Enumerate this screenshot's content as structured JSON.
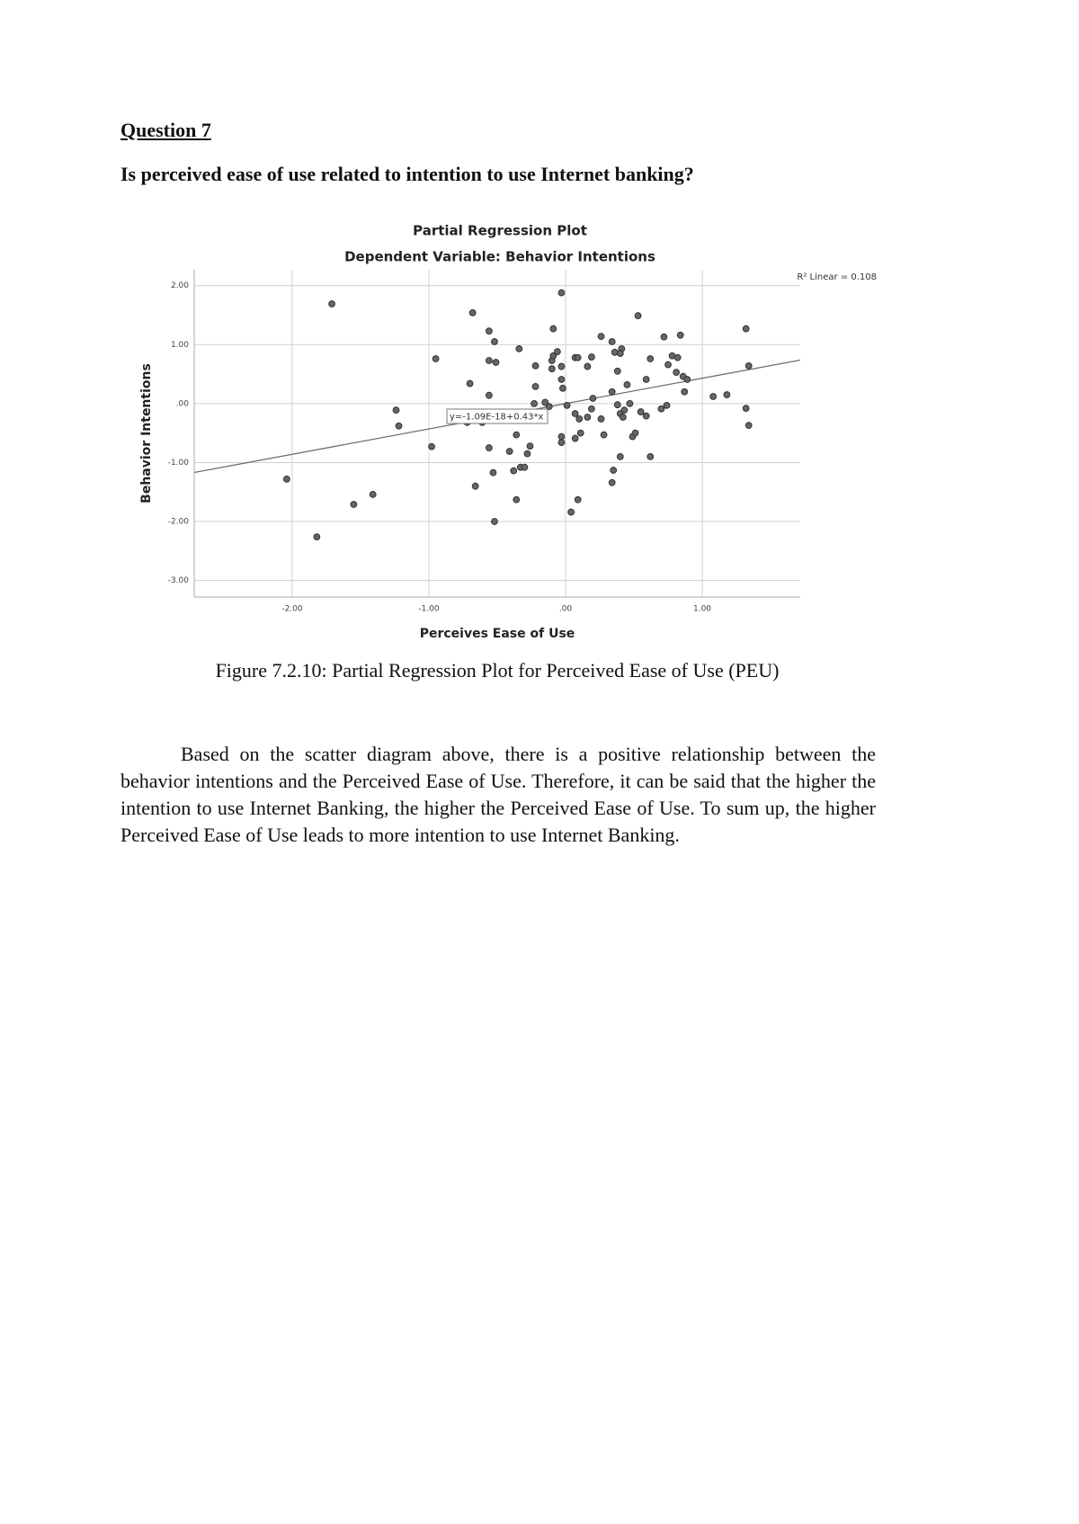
{
  "heading": "Question 7",
  "question": "Is perceived ease of use related to intention to use Internet banking?",
  "chart_data": {
    "type": "scatter",
    "title": "Partial Regression Plot",
    "subtitle": "Dependent Variable: Behavior Intentions",
    "x_label": "Perceives Ease of Use",
    "y_label": "Behavior Intentions",
    "r2_label": "R² Linear = 0.108",
    "color": "#666666",
    "grid": true,
    "xlim": [
      -2.717,
      1.717
    ],
    "ylim": [
      -3.28,
      2.27
    ],
    "xticks": [
      {
        "value": -2,
        "label": "-2.00"
      },
      {
        "value": -1,
        "label": "-1.00"
      },
      {
        "value": 0,
        "label": ".00"
      },
      {
        "value": 1,
        "label": "1.00"
      }
    ],
    "yticks": [
      {
        "value": 2,
        "label": "2.00"
      },
      {
        "value": 1,
        "label": "1.00"
      },
      {
        "value": 0,
        "label": ".00"
      },
      {
        "value": -1,
        "label": "-1.00"
      },
      {
        "value": -2,
        "label": "-2.00"
      },
      {
        "value": -3,
        "label": "-3.00"
      }
    ],
    "trendline": {
      "slope": 0.43,
      "intercept": -1.09e-18,
      "label": "y=-1.09E-18+0.43*x",
      "color": "#6e6e6e"
    },
    "x": [
      -1.71,
      -2.04,
      -1.82,
      -1.55,
      -1.41,
      -1.24,
      -1.22,
      -0.95,
      -0.98,
      -0.68,
      -0.7,
      -0.66,
      -0.72,
      -0.61,
      -0.56,
      -0.52,
      -0.56,
      -0.51,
      -0.56,
      -0.56,
      -0.53,
      -0.52,
      -0.34,
      -0.36,
      -0.41,
      -0.36,
      -0.38,
      -0.33,
      -0.3,
      -0.28,
      -0.26,
      -0.22,
      -0.22,
      -0.23,
      -0.15,
      -0.12,
      -0.09,
      -0.1,
      -0.09,
      -0.06,
      -0.1,
      -0.03,
      -0.03,
      -0.02,
      -0.03,
      -0.03,
      -0.03,
      0.01,
      0.04,
      0.07,
      0.09,
      0.09,
      0.07,
      0.1,
      0.11,
      0.07,
      0.19,
      0.16,
      0.19,
      0.2,
      0.16,
      0.26,
      0.28,
      0.26,
      0.34,
      0.36,
      0.41,
      0.4,
      0.38,
      0.34,
      0.45,
      0.38,
      0.4,
      0.43,
      0.42,
      0.47,
      0.4,
      0.35,
      0.34,
      0.49,
      0.51,
      0.53,
      0.55,
      0.59,
      0.59,
      0.62,
      0.62,
      0.72,
      0.7,
      0.74,
      0.75,
      0.78,
      0.82,
      0.81,
      0.84,
      0.86,
      0.89,
      0.87,
      1.08,
      1.18,
      1.32,
      1.34,
      1.32,
      1.34
    ],
    "values": [
      1.69,
      -1.28,
      -2.26,
      -1.71,
      -1.54,
      -0.11,
      -0.38,
      0.76,
      -0.73,
      1.54,
      0.34,
      -1.4,
      -0.32,
      -0.32,
      1.23,
      1.05,
      0.73,
      0.7,
      0.14,
      -0.75,
      -1.17,
      -2.0,
      0.93,
      -0.53,
      -0.81,
      -1.63,
      -1.14,
      -1.08,
      -1.08,
      -0.85,
      -0.72,
      0.64,
      0.29,
      0.0,
      0.02,
      -0.05,
      1.27,
      0.73,
      0.81,
      0.88,
      0.59,
      0.63,
      0.41,
      0.26,
      1.88,
      -0.56,
      -0.66,
      -0.03,
      -1.84,
      0.78,
      0.78,
      -1.63,
      -0.17,
      -0.26,
      -0.5,
      -0.59,
      0.79,
      0.63,
      -0.09,
      0.09,
      -0.23,
      -0.26,
      -0.53,
      1.14,
      1.05,
      0.87,
      0.93,
      0.85,
      0.55,
      0.2,
      0.32,
      -0.02,
      -0.17,
      -0.11,
      -0.23,
      0.0,
      -0.9,
      -1.13,
      -1.34,
      -0.56,
      -0.5,
      1.49,
      -0.14,
      -0.21,
      0.41,
      0.76,
      -0.9,
      1.13,
      -0.09,
      -0.03,
      0.66,
      0.81,
      0.78,
      0.53,
      1.16,
      0.46,
      0.41,
      0.2,
      0.12,
      0.15,
      1.27,
      0.64,
      -0.08,
      -0.37
    ]
  },
  "caption": "Figure 7.2.10: Partial Regression Plot for Perceived Ease of Use (PEU)",
  "paragraph": "Based on the scatter diagram above, there is a positive relationship between the behavior intentions and the Perceived Ease of Use. Therefore, it can be said that the higher the intention to use Internet Banking, the higher the Perceived Ease of Use. To sum up, the higher Perceived Ease of Use leads to more intention to use Internet Banking."
}
